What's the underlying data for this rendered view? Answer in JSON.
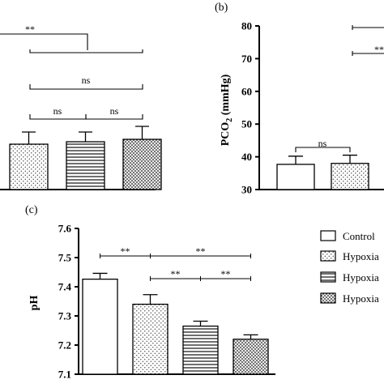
{
  "chart_data": [
    {
      "type": "bar",
      "panel": "",
      "ylabel": "",
      "ylim": null,
      "categories": [
        "Hypoxia",
        "Hypoxia",
        "Hypoxia"
      ],
      "values": [
        null,
        null,
        null
      ],
      "annotations": [
        "**",
        "ns",
        "ns",
        "ns"
      ]
    },
    {
      "type": "bar",
      "panel": "(b)",
      "ylabel": "PCO",
      "ylabel_sub": "2",
      "ylabel_unit": " (mmHg)",
      "ylim": [
        30,
        80
      ],
      "yticks": [
        "30",
        "40",
        "50",
        "60",
        "70",
        "80"
      ],
      "categories": [
        "Control",
        "Hypoxia"
      ],
      "values": [
        37.7,
        38.0
      ],
      "errors": [
        2.5,
        2.5
      ],
      "annotations": [
        "ns",
        "**"
      ]
    },
    {
      "type": "bar",
      "panel": "(c)",
      "ylabel": "pH",
      "ylim": [
        7.1,
        7.6
      ],
      "yticks": [
        "7.1",
        "7.2",
        "7.3",
        "7.4",
        "7.5",
        "7.6"
      ],
      "categories": [
        "Control",
        "Hypoxia",
        "Hypoxia",
        "Hypoxia"
      ],
      "values": [
        7.426,
        7.34,
        7.265,
        7.22
      ],
      "errors": [
        0.02,
        0.033,
        0.017,
        0.015
      ],
      "annotations": [
        "**",
        "**",
        "**",
        "**"
      ]
    }
  ],
  "legend": {
    "placement": "right",
    "items": [
      "Control",
      "Hypoxia",
      "Hypoxia",
      "Hypoxia"
    ]
  }
}
